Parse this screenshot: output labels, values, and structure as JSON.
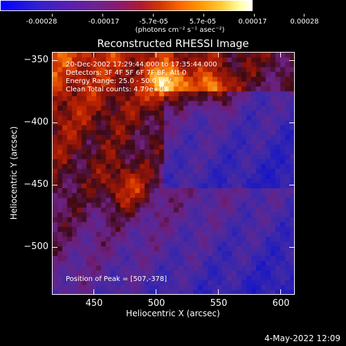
{
  "colorbar": {
    "ticks": [
      "-0.00028",
      "-0.00017",
      "-5.7e-05",
      "5.7e-05",
      "0.00017",
      "0.00028"
    ],
    "units": "(photons cm⁻² s⁻¹ asec⁻²)"
  },
  "title": "Reconstructed RHESSI Image",
  "info": {
    "line1": "20-Dec-2002 17:29:44.000 to 17:35:44.000",
    "line2": "Detectors: 3F 4F 5F 6F 7F 8F, Att 0",
    "line3": "Energy Range: 25.0 - 50.0 keV",
    "line4": "Clean     Total counts: 4.79e+03",
    "peak": "Position of Peak = [507,-378]"
  },
  "axes": {
    "xlabel": "Heliocentric X (arcsec)",
    "ylabel": "Heliocentric Y (arcsec)",
    "xticks": [
      "450",
      "500",
      "550",
      "600"
    ],
    "yticks": [
      "−350",
      "−400",
      "−450",
      "−500"
    ]
  },
  "datestamp": "4-May-2022 12:09",
  "chart_data": {
    "type": "heatmap",
    "title": "Reconstructed RHESSI Image",
    "xlabel": "Heliocentric X (arcsec)",
    "ylabel": "Heliocentric Y (arcsec)",
    "xlim": [
      417,
      611
    ],
    "ylim": [
      -537,
      -343
    ],
    "colorbar_range": [
      -0.00028,
      0.00028
    ],
    "peak": [
      507,
      -378
    ]
  }
}
